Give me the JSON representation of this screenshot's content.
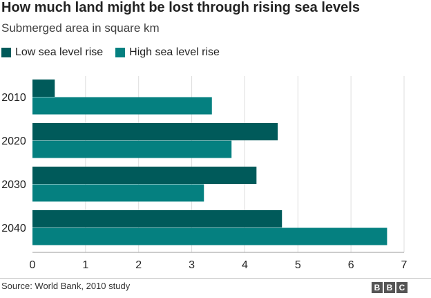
{
  "chart_data": {
    "type": "bar",
    "orientation": "horizontal",
    "title": "How much land might be lost through rising sea levels",
    "subtitle": "Submerged area in square km",
    "categories": [
      "2010",
      "2020",
      "2030",
      "2040"
    ],
    "series": [
      {
        "name": "Low sea level rise",
        "color": "#005a5a",
        "values": [
          0.42,
          4.62,
          4.22,
          4.7
        ]
      },
      {
        "name": "High sea level rise",
        "color": "#058080",
        "values": [
          3.38,
          3.75,
          3.23,
          6.68
        ]
      }
    ],
    "xlim": [
      0,
      7
    ],
    "xticks": [
      "0",
      "1",
      "2",
      "3",
      "4",
      "5",
      "6",
      "7"
    ],
    "grid": true,
    "legend": "top-left",
    "source": "Source: World Bank, 2010 study"
  },
  "branding": {
    "letters": [
      "B",
      "B",
      "C"
    ]
  }
}
